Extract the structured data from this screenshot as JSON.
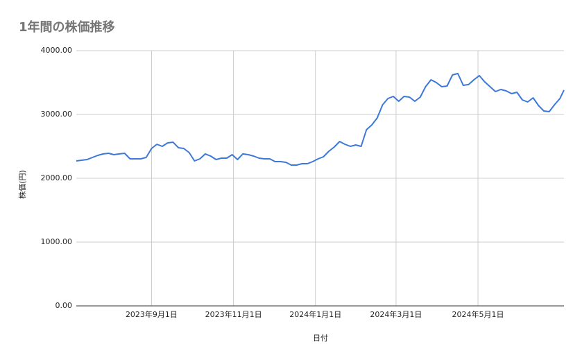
{
  "chart_data": {
    "type": "line",
    "title": "1年間の株価推移",
    "x_label": "日付",
    "y_label": "株価(円)",
    "x": [
      "2023-07-07",
      "2023-07-11",
      "2023-07-15",
      "2023-07-19",
      "2023-07-23",
      "2023-07-27",
      "2023-07-31",
      "2023-08-04",
      "2023-08-08",
      "2023-08-12",
      "2023-08-16",
      "2023-08-20",
      "2023-08-24",
      "2023-08-28",
      "2023-09-01",
      "2023-09-05",
      "2023-09-09",
      "2023-09-13",
      "2023-09-17",
      "2023-09-21",
      "2023-09-25",
      "2023-09-29",
      "2023-10-03",
      "2023-10-07",
      "2023-10-11",
      "2023-10-15",
      "2023-10-19",
      "2023-10-23",
      "2023-10-27",
      "2023-10-31",
      "2023-11-04",
      "2023-11-08",
      "2023-11-12",
      "2023-11-16",
      "2023-11-20",
      "2023-11-24",
      "2023-11-28",
      "2023-12-02",
      "2023-12-06",
      "2023-12-10",
      "2023-12-14",
      "2023-12-18",
      "2023-12-22",
      "2023-12-26",
      "2023-12-30",
      "2024-01-03",
      "2024-01-07",
      "2024-01-11",
      "2024-01-15",
      "2024-01-19",
      "2024-01-23",
      "2024-01-27",
      "2024-01-31",
      "2024-02-04",
      "2024-02-08",
      "2024-02-12",
      "2024-02-16",
      "2024-02-20",
      "2024-02-24",
      "2024-02-28",
      "2024-03-03",
      "2024-03-07",
      "2024-03-11",
      "2024-03-15",
      "2024-03-19",
      "2024-03-23",
      "2024-03-27",
      "2024-03-31",
      "2024-04-04",
      "2024-04-08",
      "2024-04-12",
      "2024-04-16",
      "2024-04-20",
      "2024-04-24",
      "2024-04-28",
      "2024-05-02",
      "2024-05-06",
      "2024-05-10",
      "2024-05-14",
      "2024-05-18",
      "2024-05-22",
      "2024-05-26",
      "2024-05-30",
      "2024-06-03",
      "2024-06-07",
      "2024-06-11",
      "2024-06-15",
      "2024-06-19",
      "2024-06-23",
      "2024-06-27",
      "2024-07-01",
      "2024-07-04"
    ],
    "series": [
      {
        "name": "株価(円)",
        "color": "#3c78d8",
        "values": [
          2272,
          2283,
          2294,
          2326,
          2359,
          2381,
          2391,
          2370,
          2381,
          2391,
          2304,
          2304,
          2304,
          2326,
          2467,
          2533,
          2500,
          2554,
          2565,
          2478,
          2467,
          2402,
          2272,
          2304,
          2381,
          2348,
          2294,
          2315,
          2315,
          2370,
          2294,
          2381,
          2370,
          2348,
          2315,
          2304,
          2304,
          2261,
          2261,
          2250,
          2207,
          2207,
          2228,
          2228,
          2261,
          2304,
          2337,
          2424,
          2489,
          2576,
          2533,
          2500,
          2522,
          2500,
          2761,
          2837,
          2946,
          3152,
          3250,
          3283,
          3207,
          3283,
          3272,
          3207,
          3272,
          3435,
          3544,
          3500,
          3435,
          3446,
          3620,
          3641,
          3457,
          3468,
          3544,
          3609,
          3511,
          3435,
          3359,
          3391,
          3370,
          3326,
          3348,
          3228,
          3196,
          3261,
          3141,
          3054,
          3044,
          3152,
          3250,
          3381
        ]
      }
    ],
    "xlim": [
      "2023-07-07",
      "2024-07-04"
    ],
    "xticks": [
      {
        "value": "2023-09-01",
        "label": "2023年9月1日"
      },
      {
        "value": "2023-11-01",
        "label": "2023年11月1日"
      },
      {
        "value": "2024-01-01",
        "label": "2024年1月1日"
      },
      {
        "value": "2024-03-01",
        "label": "2024年3月1日"
      },
      {
        "value": "2024-05-01",
        "label": "2024年5月1日"
      }
    ],
    "ylim": [
      0,
      4000
    ],
    "yticks": [
      {
        "value": 0,
        "label": "0.00"
      },
      {
        "value": 1000,
        "label": "1000.00"
      },
      {
        "value": 2000,
        "label": "2000.00"
      },
      {
        "value": 3000,
        "label": "3000.00"
      },
      {
        "value": 4000,
        "label": "4000.00"
      }
    ],
    "grid": true
  }
}
